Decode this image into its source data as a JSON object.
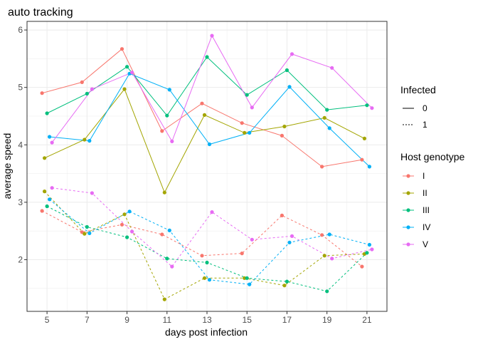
{
  "chart_data": {
    "type": "line",
    "title": "auto tracking",
    "xlabel": "days post infection",
    "ylabel": "average speed",
    "xlim": [
      4.0,
      22.0
    ],
    "ylim": [
      1.1,
      6.15
    ],
    "x_ticks": [
      5,
      7,
      9,
      11,
      13,
      15,
      17,
      19,
      21
    ],
    "y_ticks": [
      2,
      3,
      4,
      5,
      6
    ],
    "grid": true,
    "dodge": {
      "I": -0.25,
      "II": -0.125,
      "III": 0,
      "IV": 0.125,
      "V": 0.25
    },
    "legends": {
      "linetype": {
        "title": "Infected",
        "entries": [
          {
            "label": "0",
            "dash": "solid"
          },
          {
            "label": "1",
            "dash": "dotted"
          }
        ]
      },
      "color": {
        "title": "Host genotype",
        "entries": [
          {
            "label": "I",
            "color": "#F8766D"
          },
          {
            "label": "II",
            "color": "#A3A500"
          },
          {
            "label": "III",
            "color": "#00BF7D"
          },
          {
            "label": "IV",
            "color": "#00B0F6"
          },
          {
            "label": "V",
            "color": "#E76BF3"
          }
        ]
      }
    },
    "x": [
      5,
      7,
      9,
      11,
      13,
      15,
      17,
      19,
      21
    ],
    "series": [
      {
        "genotype": "I",
        "infected": "0",
        "values": [
          4.9,
          5.09,
          5.67,
          4.24,
          4.72,
          4.38,
          4.16,
          3.62,
          3.74
        ]
      },
      {
        "genotype": "II",
        "infected": "0",
        "values": [
          3.77,
          4.09,
          4.97,
          3.17,
          4.52,
          4.21,
          4.32,
          4.47,
          4.11
        ]
      },
      {
        "genotype": "III",
        "infected": "0",
        "values": [
          4.55,
          4.89,
          5.36,
          4.51,
          5.53,
          4.87,
          5.3,
          4.61,
          4.69
        ]
      },
      {
        "genotype": "IV",
        "infected": "0",
        "values": [
          4.14,
          4.07,
          5.24,
          4.96,
          4.01,
          4.21,
          5.01,
          4.29,
          3.62
        ]
      },
      {
        "genotype": "V",
        "infected": "0",
        "values": [
          4.04,
          4.97,
          5.26,
          4.06,
          5.9,
          4.65,
          5.58,
          5.34,
          4.64
        ]
      },
      {
        "genotype": "I",
        "infected": "1",
        "values": [
          2.85,
          2.48,
          2.61,
          2.44,
          2.07,
          2.11,
          2.77,
          2.43,
          1.88
        ]
      },
      {
        "genotype": "II",
        "infected": "1",
        "values": [
          3.19,
          2.45,
          2.79,
          1.31,
          1.68,
          1.68,
          1.55,
          2.07,
          2.1
        ]
      },
      {
        "genotype": "III",
        "infected": "1",
        "values": [
          2.93,
          2.57,
          2.39,
          2.02,
          1.95,
          1.68,
          1.62,
          1.45,
          2.12
        ]
      },
      {
        "genotype": "IV",
        "infected": "1",
        "values": [
          3.05,
          2.46,
          2.84,
          2.51,
          1.65,
          1.57,
          2.3,
          2.44,
          2.26
        ]
      },
      {
        "genotype": "V",
        "infected": "1",
        "values": [
          3.25,
          3.16,
          2.49,
          1.88,
          2.83,
          2.35,
          2.41,
          2.02,
          2.18
        ]
      }
    ]
  }
}
